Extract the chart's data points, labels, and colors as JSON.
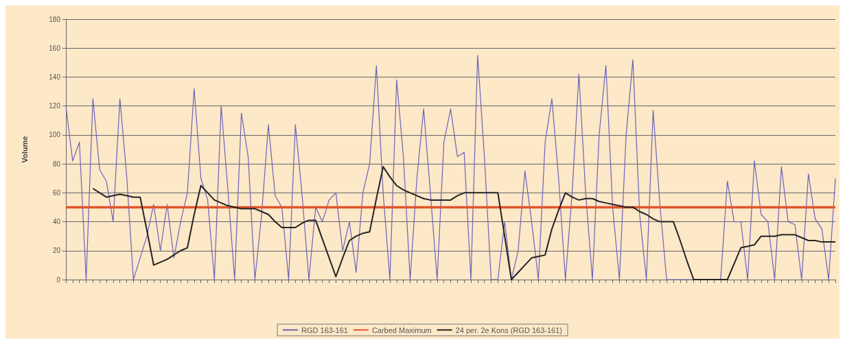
{
  "chart_data": {
    "type": "line",
    "ylabel": "Volume",
    "categories": [
      null,
      null,
      null,
      null,
      null,
      null,
      null,
      null,
      null,
      null,
      null,
      null,
      null,
      null,
      null,
      null,
      null,
      null,
      null,
      null,
      null,
      null,
      null,
      null,
      null,
      null,
      null,
      null,
      null,
      null,
      null,
      null,
      null,
      null,
      null,
      null,
      null,
      null,
      null,
      null,
      null,
      null,
      null,
      null,
      null,
      null,
      null,
      null,
      null,
      null,
      null,
      null,
      null,
      null,
      null,
      null,
      null,
      null,
      null,
      null,
      null,
      null,
      null,
      null,
      null,
      null,
      null,
      null,
      null,
      null,
      null,
      null,
      null,
      null,
      null,
      null,
      null,
      null,
      null,
      null,
      null,
      null,
      null,
      null,
      null,
      null,
      null,
      null,
      null,
      null,
      null,
      null,
      null,
      null,
      null,
      null,
      null,
      null,
      null,
      null,
      null,
      null,
      null,
      null,
      null,
      null,
      null,
      null,
      null,
      null,
      null,
      null,
      null,
      null,
      null
    ],
    "series": [
      {
        "name": "RGD 163-161",
        "color": "#6b62b8",
        "values": [
          120,
          82,
          95,
          0,
          125,
          76,
          68,
          40,
          125,
          72,
          0,
          15,
          30,
          52,
          20,
          52,
          15,
          40,
          60,
          132,
          70,
          55,
          0,
          120,
          62,
          0,
          115,
          85,
          0,
          45,
          107,
          58,
          50,
          0,
          107,
          58,
          0,
          50,
          40,
          55,
          60,
          20,
          40,
          5,
          60,
          80,
          148,
          60,
          0,
          138,
          85,
          0,
          70,
          118,
          60,
          0,
          95,
          118,
          85,
          88,
          0,
          155,
          85,
          0,
          0,
          40,
          0,
          20,
          75,
          40,
          0,
          95,
          125,
          70,
          0,
          60,
          142,
          60,
          0,
          100,
          148,
          50,
          0,
          100,
          152,
          45,
          0,
          117,
          52,
          0,
          0,
          0,
          0,
          0,
          0,
          0,
          0,
          0,
          68,
          40,
          40,
          0,
          82,
          45,
          40,
          0,
          78,
          40,
          38,
          0,
          73,
          42,
          35,
          0,
          70
        ]
      },
      {
        "name": "Carbed Maximum",
        "color": "#e0552e",
        "values": [
          50,
          50,
          50,
          50,
          50,
          50,
          50,
          50,
          50,
          50,
          50,
          50,
          50,
          50,
          50,
          50,
          50,
          50,
          50,
          50,
          50,
          50,
          50,
          50,
          50,
          50,
          50,
          50,
          50,
          50,
          50,
          50,
          50,
          50,
          50,
          50,
          50,
          50,
          50,
          50,
          50,
          50,
          50,
          50,
          50,
          50,
          50,
          50,
          50,
          50,
          50,
          50,
          50,
          50,
          50,
          50,
          50,
          50,
          50,
          50,
          50,
          50,
          50,
          50,
          50,
          50,
          50,
          50,
          50,
          50,
          50,
          50,
          50,
          50,
          50,
          50,
          50,
          50,
          50,
          50,
          50,
          50,
          50,
          50,
          50,
          50,
          50,
          50,
          50,
          50,
          50,
          50,
          50,
          50,
          50,
          50,
          50,
          50,
          50,
          50,
          50,
          50,
          50,
          50,
          50,
          50,
          50,
          50,
          50,
          50,
          50,
          50,
          50,
          50,
          50
        ]
      },
      {
        "name": "24 per. 2e Kons (RGD 163-161)",
        "color": "#222222",
        "values": [
          null,
          null,
          null,
          null,
          63,
          60,
          57,
          58,
          59,
          58,
          57,
          57,
          34,
          10,
          12,
          14,
          17,
          20,
          22,
          45,
          65,
          60,
          55,
          53,
          51,
          50,
          49,
          49,
          49,
          47,
          45,
          40,
          36,
          36,
          36,
          39,
          41,
          41,
          28,
          15,
          2,
          15,
          27,
          30,
          32,
          33,
          56,
          78,
          71,
          65,
          62,
          60,
          58,
          56,
          55,
          55,
          55,
          55,
          58,
          60,
          60,
          60,
          60,
          60,
          60,
          30,
          0,
          5,
          10,
          15,
          16,
          17,
          35,
          48,
          60,
          57,
          55,
          56,
          56,
          54,
          53,
          52,
          51,
          50,
          50,
          47,
          45,
          42,
          40,
          40,
          40,
          27,
          13,
          0,
          0,
          0,
          0,
          0,
          0,
          11,
          22,
          23,
          24,
          30,
          30,
          30,
          31,
          31,
          31,
          29,
          27,
          27,
          26,
          26,
          26
        ]
      }
    ],
    "ylim": [
      0,
      180
    ],
    "yticks": [
      0,
      20,
      40,
      60,
      80,
      100,
      120,
      140,
      160,
      180
    ],
    "grid": "y",
    "legend": "bottom",
    "marker": "none",
    "line_style": "solid"
  }
}
